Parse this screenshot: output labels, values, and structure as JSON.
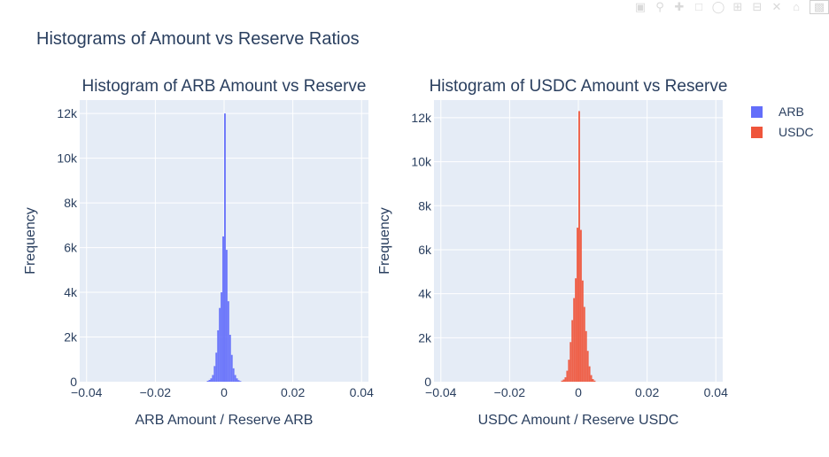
{
  "figure": {
    "title": "Histograms of Amount vs Reserve Ratios",
    "plot_bg": "#e5ecf6",
    "text_color": "#2a3f5f"
  },
  "modebar": {
    "icons": [
      "camera-icon",
      "zoom-icon",
      "pan-icon",
      "box-select-icon",
      "lasso-icon",
      "zoom-in-icon",
      "zoom-out-icon",
      "autoscale-icon",
      "reset-axes-icon",
      "plotly-logo-icon"
    ]
  },
  "legend": {
    "items": [
      {
        "name": "ARB",
        "color": "#636efa"
      },
      {
        "name": "USDC",
        "color": "#ef553b"
      }
    ]
  },
  "chart_data": [
    {
      "type": "bar",
      "subtype": "histogram",
      "title": "Histogram of ARB Amount vs Reserve",
      "xlabel": "ARB Amount / Reserve ARB",
      "ylabel": "Frequency",
      "xlim": [
        -0.042,
        0.042
      ],
      "ylim": [
        0,
        12600
      ],
      "xticks": [
        -0.04,
        -0.02,
        0,
        0.02,
        0.04
      ],
      "xtick_labels": [
        "−0.04",
        "−0.02",
        "0",
        "0.02",
        "0.04"
      ],
      "yticks": [
        0,
        2000,
        4000,
        6000,
        8000,
        10000,
        12000
      ],
      "ytick_labels": [
        "0",
        "2k",
        "4k",
        "6k",
        "8k",
        "10k",
        "12k"
      ],
      "grid": true,
      "series": [
        {
          "name": "ARB",
          "color": "#636efa",
          "bin_width": 0.0005,
          "bin_start": [
            -0.005,
            -0.0045,
            -0.004,
            -0.0035,
            -0.003,
            -0.0025,
            -0.002,
            -0.0015,
            -0.001,
            -0.0005,
            0,
            0.0005,
            0.001,
            0.0015,
            0.002,
            0.0025,
            0.003,
            0.0035,
            0.004,
            0.0045
          ],
          "values": [
            40,
            80,
            150,
            300,
            700,
            1300,
            2300,
            3300,
            4000,
            6500,
            12000,
            5900,
            3600,
            2100,
            1200,
            600,
            300,
            150,
            70,
            30
          ]
        }
      ]
    },
    {
      "type": "bar",
      "subtype": "histogram",
      "title": "Histogram of USDC Amount vs Reserve",
      "xlabel": "USDC Amount / Reserve USDC",
      "ylabel": "Frequency",
      "xlim": [
        -0.042,
        0.042
      ],
      "ylim": [
        0,
        12800
      ],
      "xticks": [
        -0.04,
        -0.02,
        0,
        0.02,
        0.04
      ],
      "xtick_labels": [
        "−0.04",
        "−0.02",
        "0",
        "0.02",
        "0.04"
      ],
      "yticks": [
        0,
        2000,
        4000,
        6000,
        8000,
        10000,
        12000
      ],
      "ytick_labels": [
        "0",
        "2k",
        "4k",
        "6k",
        "8k",
        "10k",
        "12k"
      ],
      "grid": true,
      "series": [
        {
          "name": "USDC",
          "color": "#ef553b",
          "bin_width": 0.0005,
          "bin_start": [
            -0.005,
            -0.0045,
            -0.004,
            -0.0035,
            -0.003,
            -0.0025,
            -0.002,
            -0.0015,
            -0.001,
            -0.0005,
            0,
            0.0005,
            0.001,
            0.0015,
            0.002,
            0.0025,
            0.003,
            0.0035,
            0.004,
            0.0045
          ],
          "values": [
            50,
            100,
            200,
            500,
            1000,
            1800,
            2800,
            3800,
            4700,
            7000,
            12300,
            6900,
            4600,
            3400,
            2300,
            1400,
            700,
            300,
            120,
            50
          ]
        }
      ]
    }
  ]
}
